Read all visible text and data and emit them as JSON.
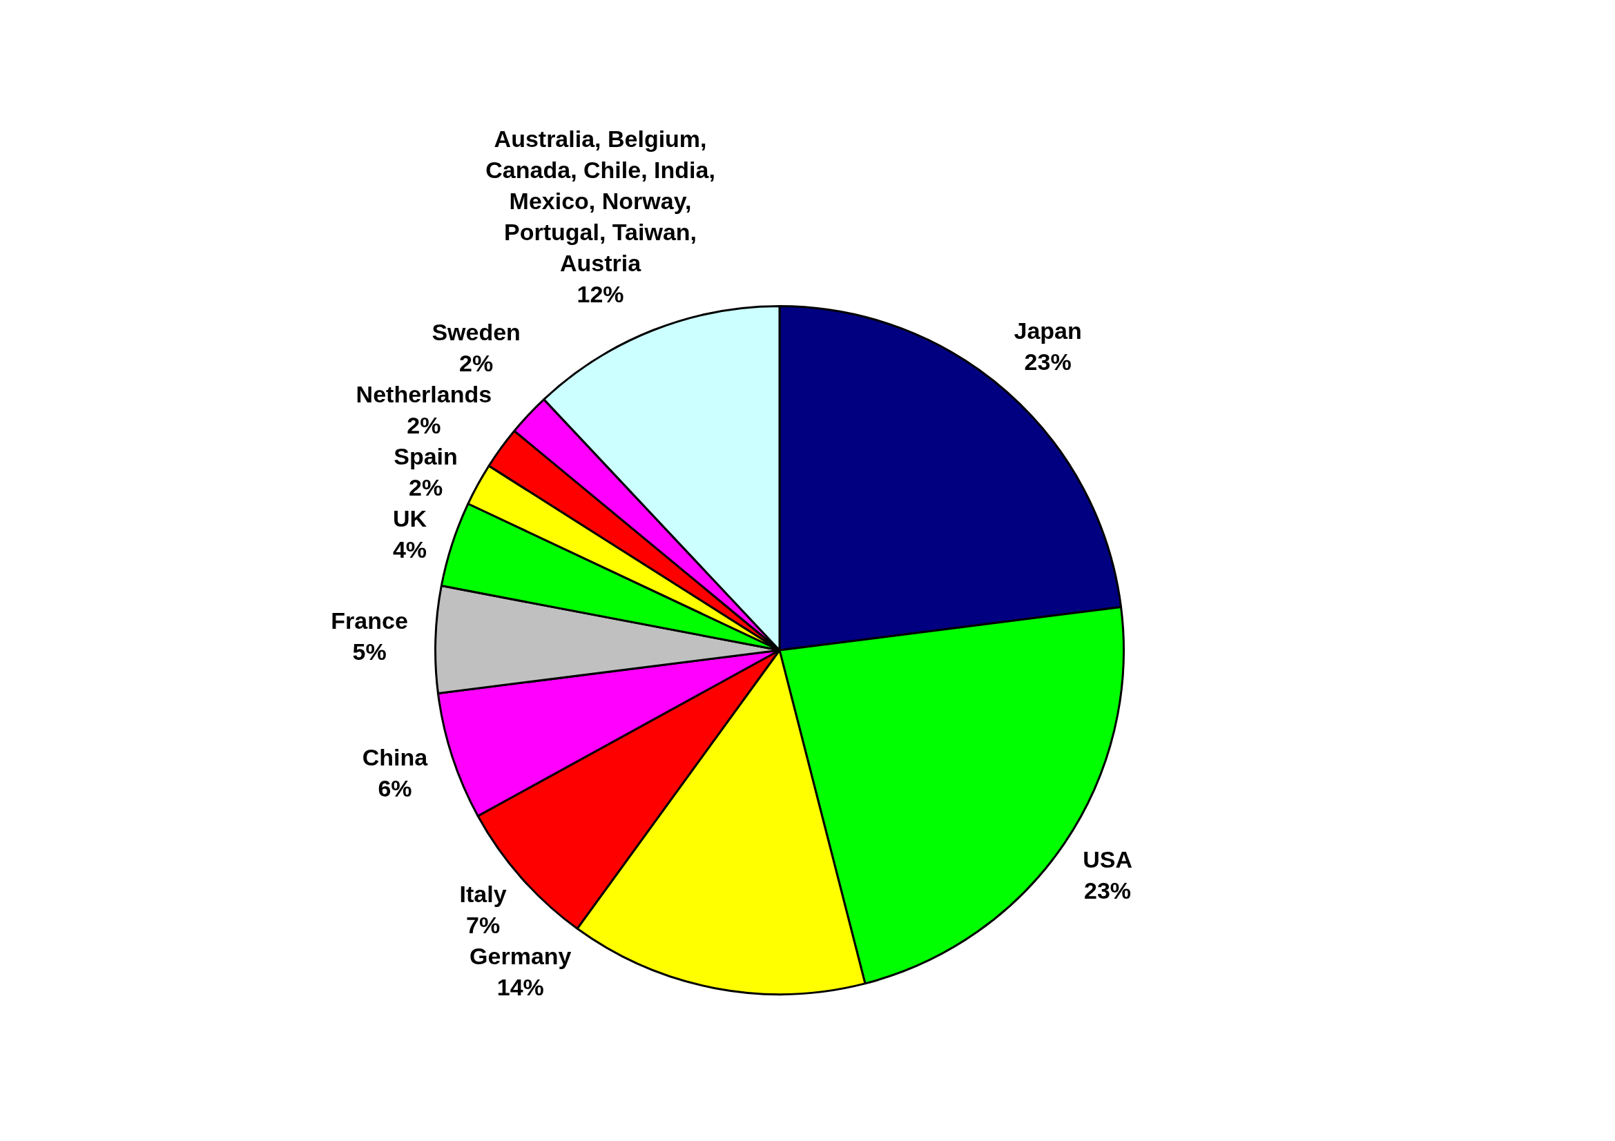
{
  "chart_data": {
    "type": "pie",
    "categories": [
      "Japan",
      "USA",
      "Germany",
      "Italy",
      "China",
      "France",
      "UK",
      "Spain",
      "Netherlands",
      "Sweden",
      "Australia, Belgium, Canada, Chile, India, Mexico, Norway, Portugal, Taiwan, Austria"
    ],
    "values": [
      23,
      23,
      14,
      7,
      6,
      5,
      4,
      2,
      2,
      2,
      12
    ],
    "value_labels": [
      "23%",
      "23%",
      "14%",
      "7%",
      "6%",
      "5%",
      "4%",
      "2%",
      "2%",
      "2%",
      "12%"
    ],
    "colors": [
      "#000080",
      "#00ff00",
      "#ffff00",
      "#ff0000",
      "#ff00ff",
      "#c0c0c0",
      "#00ff00",
      "#ffff00",
      "#ff0000",
      "#ff00ff",
      "#ccffff"
    ]
  }
}
